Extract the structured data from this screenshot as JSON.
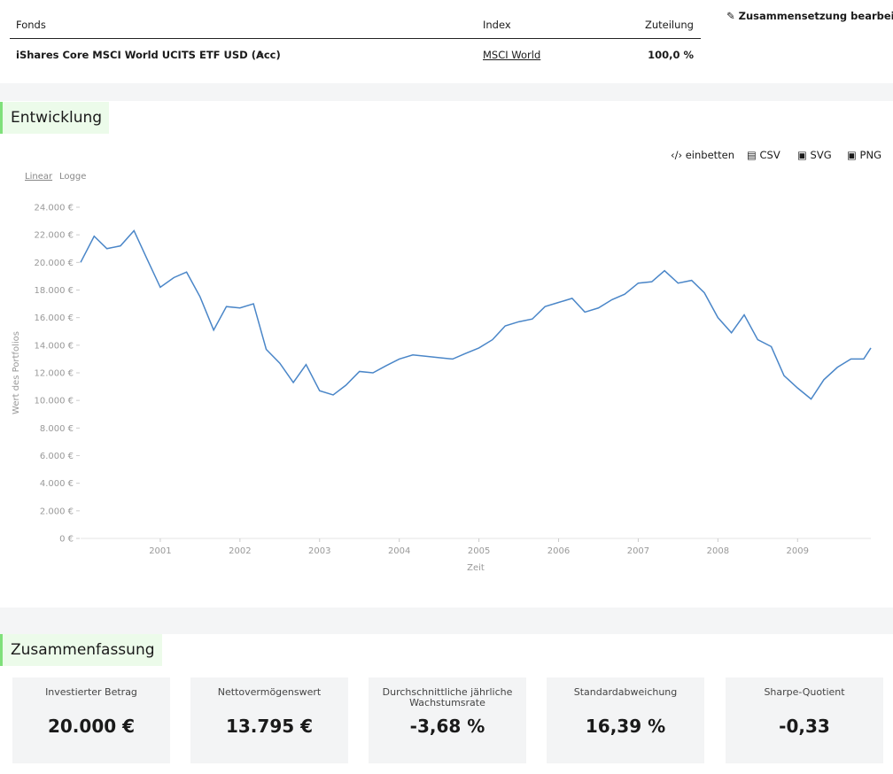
{
  "header": {
    "columns": [
      "Fonds",
      "Index",
      "Zuteilung"
    ],
    "edit": "Zusammensetzung bearbeiten"
  },
  "table": {
    "rows": [
      [
        "iShares Core MSCI World UCITS ETF USD (Acc)",
        "MSCI World",
        "100,0 %"
      ]
    ]
  },
  "section_chart": "Entwicklung",
  "toolbar": [
    "einbetten",
    "CSV",
    "SVG",
    "PNG"
  ],
  "scale_toggle": [
    "Linear",
    "Logge"
  ],
  "chart_data": {
    "type": "line",
    "y_label": "Wert des Portfolios",
    "x_label": "Zeit",
    "x": [
      2000,
      2000.17,
      2000.33,
      2000.5,
      2000.67,
      2000.83,
      2001,
      2001.17,
      2001.33,
      2001.5,
      2001.67,
      2001.83,
      2002,
      2002.17,
      2002.33,
      2002.5,
      2002.67,
      2002.83,
      2003,
      2003.17,
      2003.33,
      2003.5,
      2003.67,
      2003.83,
      2004,
      2004.17,
      2004.33,
      2004.5,
      2004.67,
      2004.83,
      2005,
      2005.17,
      2005.33,
      2005.5,
      2005.67,
      2005.83,
      2006,
      2006.17,
      2006.33,
      2006.5,
      2006.67,
      2006.83,
      2007,
      2007.17,
      2007.33,
      2007.5,
      2007.67,
      2007.83,
      2008,
      2008.17,
      2008.33,
      2008.5,
      2008.67,
      2008.83,
      2009,
      2009.17,
      2009.33,
      2009.5,
      2009.67,
      2009.83,
      2009.92
    ],
    "series": [
      {
        "name": "Portfolio",
        "color": "#4a86c8",
        "values": [
          20000,
          21900,
          21000,
          21200,
          22300,
          20300,
          18200,
          18900,
          19300,
          17500,
          15100,
          16800,
          16700,
          17000,
          13700,
          12700,
          11300,
          12600,
          10700,
          10400,
          11100,
          12100,
          12000,
          12500,
          13000,
          13300,
          13200,
          13100,
          13000,
          13400,
          13800,
          14400,
          15400,
          15700,
          15900,
          16800,
          17100,
          17400,
          16400,
          16700,
          17300,
          17700,
          18500,
          18600,
          19400,
          18500,
          18700,
          17800,
          16000,
          14900,
          16200,
          14400,
          13900,
          11800,
          10900,
          10100,
          11500,
          12400,
          13000,
          13000,
          13800
        ]
      }
    ],
    "xlim": [
      2000,
      2009.92
    ],
    "xticks": [
      2001,
      2002,
      2003,
      2004,
      2005,
      2006,
      2007,
      2008,
      2009
    ],
    "ylim": [
      0,
      24000
    ],
    "yticks": [
      {
        "value": 0,
        "label": "0 €"
      },
      {
        "value": 2000,
        "label": "2.000 €"
      },
      {
        "value": 4000,
        "label": "4.000 €"
      },
      {
        "value": 6000,
        "label": "6.000 €"
      },
      {
        "value": 8000,
        "label": "8.000 €"
      },
      {
        "value": 10000,
        "label": "10.000 €"
      },
      {
        "value": 12000,
        "label": "12.000 €"
      },
      {
        "value": 14000,
        "label": "14.000 €"
      },
      {
        "value": 16000,
        "label": "16.000 €"
      },
      {
        "value": 18000,
        "label": "18.000 €"
      },
      {
        "value": 20000,
        "label": "20.000 €"
      },
      {
        "value": 22000,
        "label": "22.000 €"
      },
      {
        "value": 24000,
        "label": "24.000 €"
      }
    ]
  },
  "section_summary": "Zusammenfassung",
  "summary": [
    {
      "label": "Investierter Betrag",
      "value": "20.000 €"
    },
    {
      "label": "Nettovermögenswert",
      "value": "13.795 €"
    },
    {
      "label": "Durchschnittliche jährliche Wachstumsrate",
      "value": "-3,68 %"
    },
    {
      "label": "Standardabweichung",
      "value": "16,39 %"
    },
    {
      "label": "Sharpe-Quotient",
      "value": "-0,33"
    }
  ]
}
